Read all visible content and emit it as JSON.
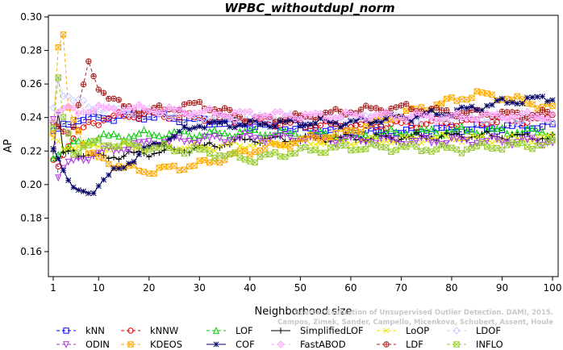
{
  "chart_data": {
    "type": "line",
    "title": "WPBC_withoutdupl_norm",
    "xlabel": "Neighborhood size",
    "ylabel": "AP",
    "xlim": [
      0,
      100
    ],
    "ylim": [
      0.15,
      0.3
    ],
    "xticks": [
      "1",
      "10",
      "20",
      "30",
      "40",
      "50",
      "60",
      "70",
      "80",
      "90",
      "100"
    ],
    "xtick_values": [
      1,
      10,
      20,
      30,
      40,
      50,
      60,
      70,
      80,
      90,
      100
    ],
    "yticks": [
      "0.16",
      "0.18",
      "0.20",
      "0.22",
      "0.24",
      "0.26",
      "0.28",
      "0.30"
    ],
    "ytick_values": [
      0.16,
      0.18,
      0.2,
      0.22,
      0.24,
      0.26,
      0.28,
      0.3
    ],
    "legend_position": "bottom",
    "watermark": {
      "line1": "Source: Evaluation of Unsupervised Outlier Detection. DAMI, 2015.",
      "line2": "Campos, Zimek, Sander, Campello, Micenkova, Schubert, Assent, Houle"
    },
    "series": [
      {
        "name": "kNN",
        "color": "#0000ff",
        "marker": "square",
        "dash": "4,3",
        "keypoints": [
          [
            1,
            0.23
          ],
          [
            3,
            0.235
          ],
          [
            5,
            0.238
          ],
          [
            10,
            0.24
          ],
          [
            20,
            0.241
          ],
          [
            30,
            0.238
          ],
          [
            40,
            0.236
          ],
          [
            50,
            0.233
          ],
          [
            60,
            0.232
          ],
          [
            70,
            0.231
          ],
          [
            80,
            0.233
          ],
          [
            90,
            0.234
          ],
          [
            100,
            0.235
          ]
        ]
      },
      {
        "name": "kNNW",
        "color": "#dd0000",
        "marker": "circle",
        "dash": "4,3",
        "keypoints": [
          [
            1,
            0.214
          ],
          [
            2,
            0.212
          ],
          [
            4,
            0.225
          ],
          [
            8,
            0.236
          ],
          [
            12,
            0.24
          ],
          [
            20,
            0.242
          ],
          [
            30,
            0.24
          ],
          [
            40,
            0.238
          ],
          [
            50,
            0.236
          ],
          [
            60,
            0.235
          ],
          [
            70,
            0.236
          ],
          [
            80,
            0.237
          ],
          [
            90,
            0.238
          ],
          [
            100,
            0.239
          ]
        ]
      },
      {
        "name": "LOF",
        "color": "#00cc00",
        "marker": "triangle",
        "dash": "4,3",
        "keypoints": [
          [
            1,
            0.218
          ],
          [
            3,
            0.22
          ],
          [
            6,
            0.225
          ],
          [
            10,
            0.228
          ],
          [
            20,
            0.23
          ],
          [
            30,
            0.23
          ],
          [
            40,
            0.231
          ],
          [
            50,
            0.23
          ],
          [
            60,
            0.229
          ],
          [
            70,
            0.231
          ],
          [
            80,
            0.232
          ],
          [
            90,
            0.232
          ],
          [
            100,
            0.231
          ]
        ]
      },
      {
        "name": "SimplifiedLOF",
        "color": "#000000",
        "marker": "plus",
        "dash": "",
        "keypoints": [
          [
            1,
            0.221
          ],
          [
            2,
            0.241
          ],
          [
            3,
            0.218
          ],
          [
            5,
            0.22
          ],
          [
            10,
            0.216
          ],
          [
            20,
            0.219
          ],
          [
            30,
            0.222
          ],
          [
            40,
            0.227
          ],
          [
            50,
            0.227
          ],
          [
            60,
            0.228
          ],
          [
            70,
            0.228
          ],
          [
            80,
            0.229
          ],
          [
            90,
            0.229
          ],
          [
            100,
            0.228
          ]
        ]
      },
      {
        "name": "LoOP",
        "color": "#e6e600",
        "marker": "x",
        "dash": "4,3",
        "keypoints": [
          [
            1,
            0.226
          ],
          [
            3,
            0.222
          ],
          [
            6,
            0.224
          ],
          [
            10,
            0.222
          ],
          [
            20,
            0.223
          ],
          [
            30,
            0.222
          ],
          [
            40,
            0.224
          ],
          [
            50,
            0.225
          ],
          [
            60,
            0.226
          ],
          [
            70,
            0.227
          ],
          [
            80,
            0.228
          ],
          [
            90,
            0.227
          ],
          [
            100,
            0.228
          ]
        ]
      },
      {
        "name": "LDOF",
        "color": "#ccccff",
        "marker": "diamond",
        "dash": "4,3",
        "keypoints": [
          [
            1,
            0.245
          ],
          [
            2,
            0.264
          ],
          [
            3,
            0.255
          ],
          [
            5,
            0.25
          ],
          [
            10,
            0.245
          ],
          [
            20,
            0.243
          ],
          [
            30,
            0.24
          ],
          [
            40,
            0.239
          ],
          [
            50,
            0.24
          ],
          [
            60,
            0.241
          ],
          [
            70,
            0.239
          ],
          [
            80,
            0.24
          ],
          [
            90,
            0.239
          ],
          [
            100,
            0.238
          ]
        ]
      },
      {
        "name": "ODIN",
        "color": "#aa33dd",
        "marker": "triangle-down",
        "dash": "4,3",
        "keypoints": [
          [
            1,
            0.24
          ],
          [
            2,
            0.206
          ],
          [
            3,
            0.209
          ],
          [
            5,
            0.214
          ],
          [
            10,
            0.219
          ],
          [
            20,
            0.225
          ],
          [
            30,
            0.227
          ],
          [
            40,
            0.228
          ],
          [
            50,
            0.228
          ],
          [
            60,
            0.227
          ],
          [
            70,
            0.226
          ],
          [
            80,
            0.226
          ],
          [
            90,
            0.226
          ],
          [
            100,
            0.226
          ]
        ]
      },
      {
        "name": "KDEOS",
        "color": "#ffaa00",
        "marker": "square-x",
        "dash": "4,3",
        "keypoints": [
          [
            1,
            0.23
          ],
          [
            2,
            0.281
          ],
          [
            3,
            0.287
          ],
          [
            4,
            0.246
          ],
          [
            5,
            0.24
          ],
          [
            8,
            0.218
          ],
          [
            15,
            0.21
          ],
          [
            20,
            0.208
          ],
          [
            30,
            0.212
          ],
          [
            40,
            0.22
          ],
          [
            50,
            0.226
          ],
          [
            60,
            0.232
          ],
          [
            70,
            0.242
          ],
          [
            80,
            0.25
          ],
          [
            85,
            0.254
          ],
          [
            90,
            0.252
          ],
          [
            100,
            0.246
          ]
        ]
      },
      {
        "name": "LDF",
        "color": "#aa2222",
        "marker": "circle-plus",
        "dash": "4,3",
        "keypoints": [
          [
            1,
            0.236
          ],
          [
            3,
            0.232
          ],
          [
            5,
            0.235
          ],
          [
            8,
            0.271
          ],
          [
            10,
            0.258
          ],
          [
            15,
            0.246
          ],
          [
            20,
            0.244
          ],
          [
            30,
            0.248
          ],
          [
            40,
            0.239
          ],
          [
            50,
            0.24
          ],
          [
            60,
            0.244
          ],
          [
            70,
            0.246
          ],
          [
            80,
            0.243
          ],
          [
            90,
            0.242
          ],
          [
            100,
            0.242
          ]
        ]
      },
      {
        "name": "COF",
        "color": "#000066",
        "marker": "star",
        "dash": "",
        "keypoints": [
          [
            1,
            0.223
          ],
          [
            3,
            0.21
          ],
          [
            5,
            0.196
          ],
          [
            8,
            0.195
          ],
          [
            12,
            0.205
          ],
          [
            20,
            0.222
          ],
          [
            30,
            0.236
          ],
          [
            40,
            0.236
          ],
          [
            50,
            0.237
          ],
          [
            60,
            0.237
          ],
          [
            70,
            0.24
          ],
          [
            80,
            0.243
          ],
          [
            90,
            0.249
          ],
          [
            100,
            0.252
          ]
        ]
      },
      {
        "name": "FastABOD",
        "color": "#ffaaff",
        "marker": "diamond-plus",
        "dash": "4,3",
        "keypoints": [
          [
            1,
            0.24
          ],
          [
            3,
            0.245
          ],
          [
            6,
            0.244
          ],
          [
            10,
            0.245
          ],
          [
            20,
            0.245
          ],
          [
            30,
            0.243
          ],
          [
            40,
            0.242
          ],
          [
            50,
            0.241
          ],
          [
            60,
            0.241
          ],
          [
            70,
            0.241
          ],
          [
            80,
            0.24
          ],
          [
            90,
            0.241
          ],
          [
            100,
            0.241
          ]
        ]
      },
      {
        "name": "INFLO",
        "color": "#99cc33",
        "marker": "hourglass",
        "dash": "4,3",
        "keypoints": [
          [
            1,
            0.232
          ],
          [
            2,
            0.262
          ],
          [
            3,
            0.24
          ],
          [
            5,
            0.22
          ],
          [
            10,
            0.225
          ],
          [
            20,
            0.222
          ],
          [
            30,
            0.22
          ],
          [
            40,
            0.215
          ],
          [
            50,
            0.22
          ],
          [
            60,
            0.222
          ],
          [
            70,
            0.222
          ],
          [
            80,
            0.221
          ],
          [
            90,
            0.223
          ],
          [
            100,
            0.224
          ]
        ]
      }
    ]
  }
}
